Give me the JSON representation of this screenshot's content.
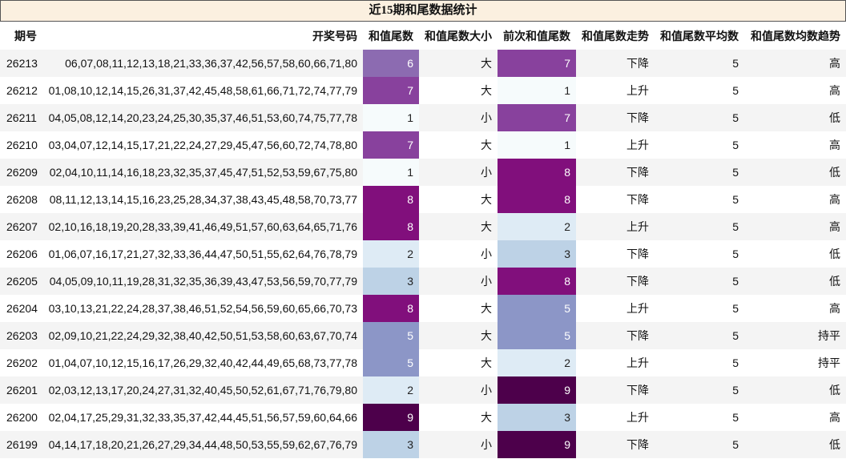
{
  "title": "近15期和尾数据统计",
  "headers": [
    "期号",
    "开奖号码",
    "和值尾数",
    "和值尾数大小",
    "前次和值尾数",
    "和值尾数走势",
    "和值尾数平均数",
    "和值尾数均数趋势"
  ],
  "heat_colors": {
    "1": "#f6fbfc",
    "2": "#deebf5",
    "3": "#bdd2e6",
    "5": "#8c96c7",
    "6": "#8c6bb1",
    "7": "#88419d",
    "8": "#810f7c",
    "9": "#4d004b"
  },
  "rows": [
    {
      "issue": "26213",
      "numbers": "06,07,08,11,12,13,18,21,33,36,37,42,56,57,58,60,66,71,80",
      "tail": "6",
      "size": "大",
      "prev_tail": "7",
      "trend": "下降",
      "avg": "5",
      "avg_trend": "高"
    },
    {
      "issue": "26212",
      "numbers": "01,08,10,12,14,15,26,31,37,42,45,48,58,61,66,71,72,74,77,79",
      "tail": "7",
      "size": "大",
      "prev_tail": "1",
      "trend": "上升",
      "avg": "5",
      "avg_trend": "高"
    },
    {
      "issue": "26211",
      "numbers": "04,05,08,12,14,20,23,24,25,30,35,37,46,51,53,60,74,75,77,78",
      "tail": "1",
      "size": "小",
      "prev_tail": "7",
      "trend": "下降",
      "avg": "5",
      "avg_trend": "低"
    },
    {
      "issue": "26210",
      "numbers": "03,04,07,12,14,15,17,21,22,24,27,29,45,47,56,60,72,74,78,80",
      "tail": "7",
      "size": "大",
      "prev_tail": "1",
      "trend": "上升",
      "avg": "5",
      "avg_trend": "高"
    },
    {
      "issue": "26209",
      "numbers": "02,04,10,11,14,16,18,23,32,35,37,45,47,51,52,53,59,67,75,80",
      "tail": "1",
      "size": "小",
      "prev_tail": "8",
      "trend": "下降",
      "avg": "5",
      "avg_trend": "低"
    },
    {
      "issue": "26208",
      "numbers": "08,11,12,13,14,15,16,23,25,28,34,37,38,43,45,48,58,70,73,77",
      "tail": "8",
      "size": "大",
      "prev_tail": "8",
      "trend": "下降",
      "avg": "5",
      "avg_trend": "高"
    },
    {
      "issue": "26207",
      "numbers": "02,10,16,18,19,20,28,33,39,41,46,49,51,57,60,63,64,65,71,76",
      "tail": "8",
      "size": "大",
      "prev_tail": "2",
      "trend": "上升",
      "avg": "5",
      "avg_trend": "高"
    },
    {
      "issue": "26206",
      "numbers": "01,06,07,16,17,21,27,32,33,36,44,47,50,51,55,62,64,76,78,79",
      "tail": "2",
      "size": "小",
      "prev_tail": "3",
      "trend": "下降",
      "avg": "5",
      "avg_trend": "低"
    },
    {
      "issue": "26205",
      "numbers": "04,05,09,10,11,19,28,31,32,35,36,39,43,47,53,56,59,70,77,79",
      "tail": "3",
      "size": "小",
      "prev_tail": "8",
      "trend": "下降",
      "avg": "5",
      "avg_trend": "低"
    },
    {
      "issue": "26204",
      "numbers": "03,10,13,21,22,24,28,37,38,46,51,52,54,56,59,60,65,66,70,73",
      "tail": "8",
      "size": "大",
      "prev_tail": "5",
      "trend": "上升",
      "avg": "5",
      "avg_trend": "高"
    },
    {
      "issue": "26203",
      "numbers": "02,09,10,21,22,24,29,32,38,40,42,50,51,53,58,60,63,67,70,74",
      "tail": "5",
      "size": "大",
      "prev_tail": "5",
      "trend": "下降",
      "avg": "5",
      "avg_trend": "持平"
    },
    {
      "issue": "26202",
      "numbers": "01,04,07,10,12,15,16,17,26,29,32,40,42,44,49,65,68,73,77,78",
      "tail": "5",
      "size": "大",
      "prev_tail": "2",
      "trend": "上升",
      "avg": "5",
      "avg_trend": "持平"
    },
    {
      "issue": "26201",
      "numbers": "02,03,12,13,17,20,24,27,31,32,40,45,50,52,61,67,71,76,79,80",
      "tail": "2",
      "size": "小",
      "prev_tail": "9",
      "trend": "下降",
      "avg": "5",
      "avg_trend": "低"
    },
    {
      "issue": "26200",
      "numbers": "02,04,17,25,29,31,32,33,35,37,42,44,45,51,56,57,59,60,64,66",
      "tail": "9",
      "size": "大",
      "prev_tail": "3",
      "trend": "上升",
      "avg": "5",
      "avg_trend": "高"
    },
    {
      "issue": "26199",
      "numbers": "04,14,17,18,20,21,26,27,29,34,44,48,50,53,55,59,62,67,76,79",
      "tail": "3",
      "size": "小",
      "prev_tail": "9",
      "trend": "下降",
      "avg": "5",
      "avg_trend": "低"
    }
  ]
}
